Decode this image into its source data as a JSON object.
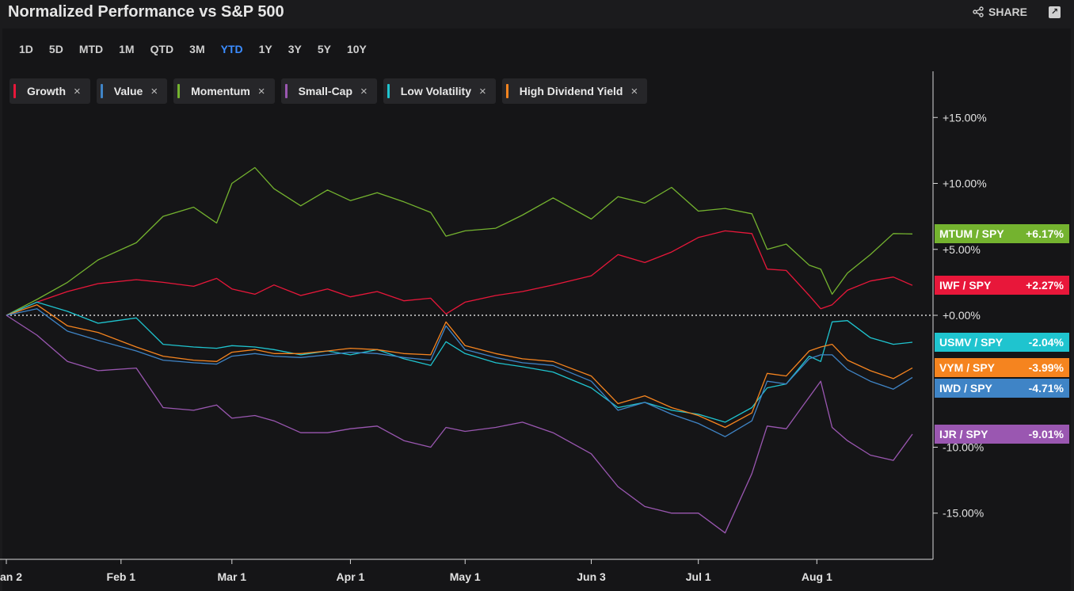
{
  "header": {
    "title": "Normalized Performance vs S&P 500",
    "share_label": "SHARE"
  },
  "ranges": [
    "1D",
    "5D",
    "MTD",
    "1M",
    "QTD",
    "3M",
    "YTD",
    "1Y",
    "3Y",
    "5Y",
    "10Y"
  ],
  "active_range": "YTD",
  "legend": [
    {
      "label": "Growth",
      "color": "#e8173a"
    },
    {
      "label": "Value",
      "color": "#3f84c6"
    },
    {
      "label": "Momentum",
      "color": "#74b32f"
    },
    {
      "label": "Small-Cap",
      "color": "#9a57b1"
    },
    {
      "label": "Low Volatility",
      "color": "#1fc4cf"
    },
    {
      "label": "High Dividend Yield",
      "color": "#f5841f"
    }
  ],
  "chart_data": {
    "type": "line",
    "xlabel": "",
    "ylabel": "",
    "ylim": [
      -18.5,
      18.5
    ],
    "y_ticks": [
      15,
      10,
      5,
      0,
      -10,
      -15
    ],
    "y_tick_labels": [
      "+15.00%",
      "+10.00%",
      "+5.00%",
      "+0.00%",
      "-10.00%",
      "-15.00%"
    ],
    "x_ticks": [
      {
        "date": "2024-01-02",
        "label": "an 2"
      },
      {
        "date": "2024-02-01",
        "label": "Feb 1"
      },
      {
        "date": "2024-03-01",
        "label": "Mar 1"
      },
      {
        "date": "2024-04-01",
        "label": "Apr 1"
      },
      {
        "date": "2024-05-01",
        "label": "May 1"
      },
      {
        "date": "2024-06-03",
        "label": "Jun 3"
      },
      {
        "date": "2024-07-01",
        "label": "Jul 1"
      },
      {
        "date": "2024-08-01",
        "label": "Aug 1"
      }
    ],
    "series": [
      {
        "name": "MTUM / SPY",
        "color": "#74b32f",
        "last_value": "+6.17%",
        "x": [
          "2024-01-02",
          "2024-01-10",
          "2024-01-18",
          "2024-01-26",
          "2024-02-05",
          "2024-02-12",
          "2024-02-20",
          "2024-02-26",
          "2024-03-01",
          "2024-03-07",
          "2024-03-12",
          "2024-03-19",
          "2024-03-26",
          "2024-04-01",
          "2024-04-08",
          "2024-04-15",
          "2024-04-22",
          "2024-04-26",
          "2024-05-01",
          "2024-05-09",
          "2024-05-16",
          "2024-05-24",
          "2024-06-03",
          "2024-06-10",
          "2024-06-17",
          "2024-06-24",
          "2024-07-01",
          "2024-07-08",
          "2024-07-15",
          "2024-07-19",
          "2024-07-24",
          "2024-07-30",
          "2024-08-02",
          "2024-08-05",
          "2024-08-09",
          "2024-08-15",
          "2024-08-21",
          "2024-08-26"
        ],
        "y": [
          0.0,
          1.2,
          2.5,
          4.2,
          5.5,
          7.5,
          8.2,
          7.0,
          10.0,
          11.2,
          9.6,
          8.3,
          9.5,
          8.7,
          9.3,
          8.6,
          7.8,
          6.0,
          6.4,
          6.6,
          7.6,
          8.9,
          7.3,
          9.0,
          8.5,
          9.7,
          7.9,
          8.1,
          7.7,
          5.0,
          5.4,
          3.8,
          3.5,
          1.6,
          3.2,
          4.6,
          6.2,
          6.17
        ]
      },
      {
        "name": "IWF / SPY",
        "color": "#e8173a",
        "last_value": "+2.27%",
        "x": [
          "2024-01-02",
          "2024-01-10",
          "2024-01-18",
          "2024-01-26",
          "2024-02-05",
          "2024-02-12",
          "2024-02-20",
          "2024-02-26",
          "2024-03-01",
          "2024-03-07",
          "2024-03-12",
          "2024-03-19",
          "2024-03-26",
          "2024-04-01",
          "2024-04-08",
          "2024-04-15",
          "2024-04-22",
          "2024-04-26",
          "2024-05-01",
          "2024-05-09",
          "2024-05-16",
          "2024-05-24",
          "2024-06-03",
          "2024-06-10",
          "2024-06-17",
          "2024-06-24",
          "2024-07-01",
          "2024-07-08",
          "2024-07-15",
          "2024-07-19",
          "2024-07-24",
          "2024-07-30",
          "2024-08-02",
          "2024-08-05",
          "2024-08-09",
          "2024-08-15",
          "2024-08-21",
          "2024-08-26"
        ],
        "y": [
          0.0,
          1.0,
          1.8,
          2.4,
          2.7,
          2.5,
          2.2,
          2.8,
          2.0,
          1.6,
          2.3,
          1.5,
          2.0,
          1.4,
          1.8,
          1.1,
          1.3,
          0.1,
          1.0,
          1.5,
          1.8,
          2.3,
          3.0,
          4.6,
          4.0,
          4.8,
          5.9,
          6.4,
          6.2,
          3.5,
          3.4,
          1.5,
          0.5,
          0.8,
          1.9,
          2.6,
          2.9,
          2.27
        ]
      },
      {
        "name": "USMV / SPY",
        "color": "#1fc4cf",
        "last_value": "-2.04%",
        "x": [
          "2024-01-02",
          "2024-01-10",
          "2024-01-18",
          "2024-01-26",
          "2024-02-05",
          "2024-02-12",
          "2024-02-20",
          "2024-02-26",
          "2024-03-01",
          "2024-03-07",
          "2024-03-12",
          "2024-03-19",
          "2024-03-26",
          "2024-04-01",
          "2024-04-08",
          "2024-04-15",
          "2024-04-22",
          "2024-04-26",
          "2024-05-01",
          "2024-05-09",
          "2024-05-16",
          "2024-05-24",
          "2024-06-03",
          "2024-06-10",
          "2024-06-17",
          "2024-06-24",
          "2024-07-01",
          "2024-07-08",
          "2024-07-15",
          "2024-07-19",
          "2024-07-24",
          "2024-07-30",
          "2024-08-02",
          "2024-08-05",
          "2024-08-09",
          "2024-08-15",
          "2024-08-21",
          "2024-08-26"
        ],
        "y": [
          0.0,
          1.0,
          0.3,
          -0.6,
          -0.2,
          -2.2,
          -2.4,
          -2.5,
          -2.3,
          -2.4,
          -2.6,
          -3.0,
          -2.7,
          -3.0,
          -2.6,
          -3.3,
          -3.8,
          -2.0,
          -2.9,
          -3.6,
          -3.9,
          -4.3,
          -5.5,
          -7.0,
          -6.6,
          -7.2,
          -7.5,
          -8.1,
          -7.0,
          -5.5,
          -5.2,
          -3.1,
          -3.5,
          -0.5,
          -0.4,
          -1.7,
          -2.2,
          -2.04
        ]
      },
      {
        "name": "VYM / SPY",
        "color": "#f5841f",
        "last_value": "-3.99%",
        "x": [
          "2024-01-02",
          "2024-01-10",
          "2024-01-18",
          "2024-01-26",
          "2024-02-05",
          "2024-02-12",
          "2024-02-20",
          "2024-02-26",
          "2024-03-01",
          "2024-03-07",
          "2024-03-12",
          "2024-03-19",
          "2024-03-26",
          "2024-04-01",
          "2024-04-08",
          "2024-04-15",
          "2024-04-22",
          "2024-04-26",
          "2024-05-01",
          "2024-05-09",
          "2024-05-16",
          "2024-05-24",
          "2024-06-03",
          "2024-06-10",
          "2024-06-17",
          "2024-06-24",
          "2024-07-01",
          "2024-07-08",
          "2024-07-15",
          "2024-07-19",
          "2024-07-24",
          "2024-07-30",
          "2024-08-02",
          "2024-08-05",
          "2024-08-09",
          "2024-08-15",
          "2024-08-21",
          "2024-08-26"
        ],
        "y": [
          0.0,
          0.8,
          -0.8,
          -1.3,
          -2.4,
          -3.1,
          -3.4,
          -3.5,
          -2.8,
          -2.6,
          -2.9,
          -2.9,
          -2.7,
          -2.5,
          -2.6,
          -2.9,
          -3.0,
          -0.5,
          -2.3,
          -2.9,
          -3.3,
          -3.5,
          -4.6,
          -6.7,
          -6.1,
          -7.0,
          -7.6,
          -8.5,
          -7.4,
          -4.4,
          -4.6,
          -2.7,
          -2.4,
          -2.2,
          -3.4,
          -4.2,
          -4.8,
          -3.99
        ]
      },
      {
        "name": "IWD / SPY",
        "color": "#3f84c6",
        "last_value": "-4.71%",
        "x": [
          "2024-01-02",
          "2024-01-10",
          "2024-01-18",
          "2024-01-26",
          "2024-02-05",
          "2024-02-12",
          "2024-02-20",
          "2024-02-26",
          "2024-03-01",
          "2024-03-07",
          "2024-03-12",
          "2024-03-19",
          "2024-03-26",
          "2024-04-01",
          "2024-04-08",
          "2024-04-15",
          "2024-04-22",
          "2024-04-26",
          "2024-05-01",
          "2024-05-09",
          "2024-05-16",
          "2024-05-24",
          "2024-06-03",
          "2024-06-10",
          "2024-06-17",
          "2024-06-24",
          "2024-07-01",
          "2024-07-08",
          "2024-07-15",
          "2024-07-19",
          "2024-07-24",
          "2024-07-30",
          "2024-08-02",
          "2024-08-05",
          "2024-08-09",
          "2024-08-15",
          "2024-08-21",
          "2024-08-26"
        ],
        "y": [
          0.0,
          0.5,
          -1.2,
          -1.9,
          -2.7,
          -3.4,
          -3.6,
          -3.7,
          -3.1,
          -2.9,
          -3.1,
          -3.2,
          -3.0,
          -2.8,
          -2.9,
          -3.2,
          -3.4,
          -0.8,
          -2.6,
          -3.2,
          -3.6,
          -3.8,
          -5.0,
          -7.2,
          -6.6,
          -7.5,
          -8.2,
          -9.2,
          -8.0,
          -5.0,
          -5.2,
          -3.3,
          -3.0,
          -3.0,
          -4.1,
          -5.0,
          -5.6,
          -4.71
        ]
      },
      {
        "name": "IJR / SPY",
        "color": "#9a57b1",
        "last_value": "-9.01%",
        "x": [
          "2024-01-02",
          "2024-01-10",
          "2024-01-18",
          "2024-01-26",
          "2024-02-05",
          "2024-02-12",
          "2024-02-20",
          "2024-02-26",
          "2024-03-01",
          "2024-03-07",
          "2024-03-12",
          "2024-03-19",
          "2024-03-26",
          "2024-04-01",
          "2024-04-08",
          "2024-04-15",
          "2024-04-22",
          "2024-04-26",
          "2024-05-01",
          "2024-05-09",
          "2024-05-16",
          "2024-05-24",
          "2024-06-03",
          "2024-06-10",
          "2024-06-17",
          "2024-06-24",
          "2024-07-01",
          "2024-07-08",
          "2024-07-15",
          "2024-07-19",
          "2024-07-24",
          "2024-07-30",
          "2024-08-02",
          "2024-08-05",
          "2024-08-09",
          "2024-08-15",
          "2024-08-21",
          "2024-08-26"
        ],
        "y": [
          0.0,
          -1.5,
          -3.5,
          -4.2,
          -4.0,
          -7.0,
          -7.2,
          -6.8,
          -7.8,
          -7.6,
          -8.0,
          -8.9,
          -8.9,
          -8.6,
          -8.4,
          -9.5,
          -10.0,
          -8.5,
          -8.8,
          -8.5,
          -8.1,
          -8.9,
          -10.5,
          -13.0,
          -14.5,
          -15.0,
          -15.0,
          -16.5,
          -12.0,
          -8.4,
          -8.6,
          -6.2,
          -5.0,
          -8.5,
          -9.5,
          -10.6,
          -11.0,
          -9.01
        ]
      }
    ]
  }
}
